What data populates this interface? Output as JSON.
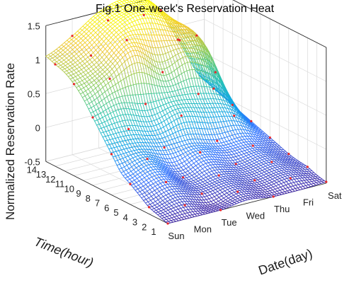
{
  "chart_data": {
    "type": "surface",
    "title": "Fig.1 One-week's Reservation Heat",
    "xlabel": "Date(day)",
    "ylabel": "Time(hour)",
    "zlabel": "Normalized Reservation Rate",
    "x_ticks": [
      "Sun",
      "Mon",
      "Tue",
      "Wed",
      "Thu",
      "Fri",
      "Sat"
    ],
    "y_ticks": [
      "1",
      "2",
      "3",
      "4",
      "5",
      "6",
      "7",
      "8",
      "9",
      "10",
      "11",
      "12",
      "13",
      "14"
    ],
    "z_ticks": [
      "-0.5",
      "0",
      "0.5",
      "1",
      "1.5"
    ],
    "zlim": [
      -0.5,
      1.5
    ],
    "grid": true,
    "colormap": [
      "#3e26a8",
      "#2f73ff",
      "#12a9e4",
      "#2dc5ab",
      "#8ccc5c",
      "#f0c733",
      "#f9fb0e"
    ],
    "marker_color": "#e8272c",
    "series": [
      {
        "name": "hour 1",
        "values": [
          -0.5,
          -0.5,
          -0.5,
          -0.45,
          -0.5,
          -0.5,
          -0.48
        ]
      },
      {
        "name": "hour 2",
        "values": [
          -0.45,
          -0.4,
          -0.5,
          -0.4,
          -0.45,
          -0.4,
          -0.45
        ]
      },
      {
        "name": "hour 3",
        "values": [
          -0.4,
          -0.3,
          -0.4,
          -0.35,
          -0.4,
          -0.35,
          -0.4
        ]
      },
      {
        "name": "hour 4",
        "values": [
          -0.3,
          -0.2,
          -0.35,
          -0.3,
          -0.35,
          -0.3,
          -0.38
        ]
      },
      {
        "name": "hour 5",
        "values": [
          -0.2,
          -0.1,
          -0.3,
          -0.2,
          -0.3,
          -0.25,
          -0.35
        ]
      },
      {
        "name": "hour 6",
        "values": [
          -0.1,
          0.0,
          -0.2,
          -0.1,
          -0.2,
          -0.2,
          -0.3
        ]
      },
      {
        "name": "hour 7",
        "values": [
          0.1,
          0.1,
          0.0,
          0.0,
          -0.1,
          -0.1,
          -0.25
        ]
      },
      {
        "name": "hour 8",
        "values": [
          0.3,
          0.3,
          0.2,
          0.3,
          0.2,
          0.1,
          -0.2
        ]
      },
      {
        "name": "hour 9",
        "values": [
          0.5,
          0.6,
          0.5,
          0.5,
          0.45,
          0.3,
          -0.15
        ]
      },
      {
        "name": "hour 10",
        "values": [
          0.7,
          0.9,
          1.1,
          0.8,
          0.9,
          0.6,
          -0.1
        ]
      },
      {
        "name": "hour 11",
        "values": [
          0.85,
          1.0,
          1.3,
          1.2,
          1.1,
          0.9,
          -0.05
        ]
      },
      {
        "name": "hour 12",
        "values": [
          0.95,
          1.1,
          1.4,
          1.5,
          1.3,
          1.0,
          0.0
        ]
      },
      {
        "name": "hour 13",
        "values": [
          1.0,
          1.2,
          1.45,
          1.55,
          1.4,
          0.9,
          0.05
        ]
      },
      {
        "name": "hour 14",
        "values": [
          1.05,
          1.25,
          1.5,
          1.6,
          1.45,
          0.8,
          0.1
        ]
      }
    ]
  }
}
